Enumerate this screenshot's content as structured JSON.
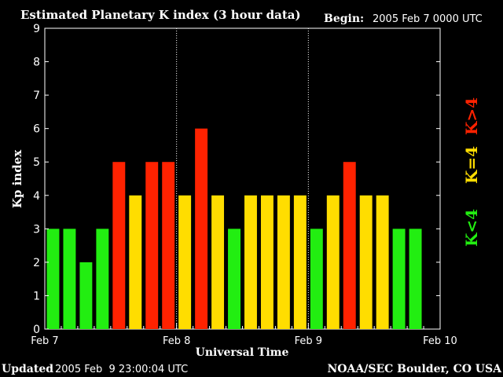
{
  "title": "Estimated Planetary K index (3 hour data)",
  "begin_label": "Begin:",
  "begin_value": "2005 Feb 7 0000 UTC",
  "footer": {
    "updated_label": "Updated",
    "updated_value": "2005 Feb  9 23:00:04 UTC",
    "source": "NOAA/SEC Boulder, CO USA"
  },
  "legend": {
    "items": [
      {
        "label": "K<4",
        "color": "#22ee11"
      },
      {
        "label": "K=4",
        "color": "#ffdd00"
      },
      {
        "label": "K>4",
        "color": "#ff2200"
      }
    ]
  },
  "chart_data": {
    "type": "bar",
    "xlabel": "Universal Time",
    "ylabel": "Kp index",
    "ylim": [
      0,
      9
    ],
    "yticks": [
      0,
      1,
      2,
      3,
      4,
      5,
      6,
      7,
      8,
      9
    ],
    "x_tick_labels": [
      "Feb 7",
      "Feb 8",
      "Feb 9",
      "Feb 10"
    ],
    "interval_hours": 3,
    "values": [
      3,
      3,
      2,
      3,
      5,
      4,
      5,
      5,
      4,
      6,
      4,
      3,
      4,
      4,
      4,
      4,
      3,
      4,
      5,
      4,
      4,
      3,
      3
    ],
    "colors": {
      "low": "#22ee11",
      "equal": "#ffdd00",
      "high": "#ff2200"
    }
  }
}
